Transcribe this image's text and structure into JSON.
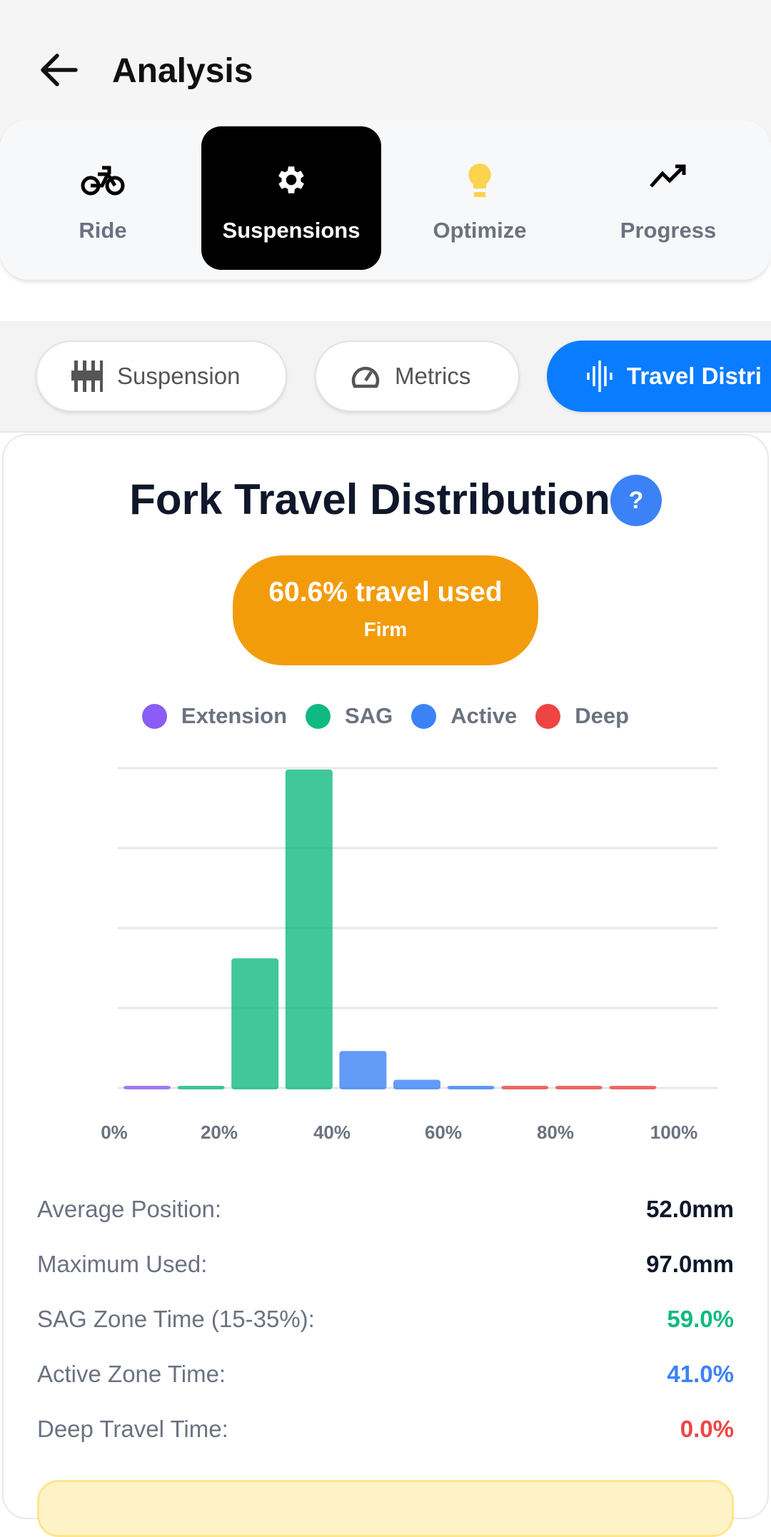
{
  "header": {
    "title": "Analysis",
    "back_icon": "arrow-left-icon"
  },
  "main_tabs": [
    {
      "label": "Ride",
      "icon": "bicycle-icon"
    },
    {
      "label": "Suspensions",
      "icon": "gear-icon",
      "active": true
    },
    {
      "label": "Optimize",
      "icon": "lightbulb-icon"
    },
    {
      "label": "Progress",
      "icon": "trending-up-icon"
    }
  ],
  "sub_tabs": [
    {
      "label": "Suspension",
      "icon": "sliders-icon"
    },
    {
      "label": "Metrics",
      "icon": "gauge-icon"
    },
    {
      "label": "Travel Distri",
      "icon": "waveform-icon",
      "active": true
    }
  ],
  "card": {
    "title": "Fork Travel Distribution",
    "help": "?",
    "badge": {
      "main": "60.6% travel used",
      "sub": "Firm",
      "color": "#f39c0b"
    },
    "legend": [
      {
        "label": "Extension",
        "color": "#8b5cf6"
      },
      {
        "label": "SAG",
        "color": "#10b981"
      },
      {
        "label": "Active",
        "color": "#3b82f6"
      },
      {
        "label": "Deep",
        "color": "#ef4444"
      }
    ]
  },
  "chart_data": {
    "type": "bar",
    "x_tick_labels": [
      "0%",
      "20%",
      "40%",
      "60%",
      "80%",
      "100%"
    ],
    "bins": [
      "0-10%",
      "10-20%",
      "20-30%",
      "30-40%",
      "40-50%",
      "50-60%",
      "60-70%",
      "70-80%",
      "80-90%",
      "90-100%"
    ],
    "values": [
      0,
      0,
      41,
      100,
      12,
      3,
      1,
      0,
      0,
      0
    ],
    "zones": [
      "Extension",
      "SAG",
      "SAG",
      "SAG",
      "Active",
      "Active",
      "Active",
      "Deep",
      "Deep",
      "Deep"
    ],
    "ylim": [
      0,
      100
    ],
    "grid": true,
    "legend": "top"
  },
  "stats": [
    {
      "label": "Average Position:",
      "value": "52.0mm",
      "color": "#0f172a"
    },
    {
      "label": "Maximum Used:",
      "value": "97.0mm",
      "color": "#0f172a"
    },
    {
      "label": "SAG Zone Time (15-35%):",
      "value": "59.0%",
      "color": "#10b981"
    },
    {
      "label": "Active Zone Time:",
      "value": "41.0%",
      "color": "#3b82f6"
    },
    {
      "label": "Deep Travel Time:",
      "value": "0.0%",
      "color": "#ef4444"
    }
  ]
}
